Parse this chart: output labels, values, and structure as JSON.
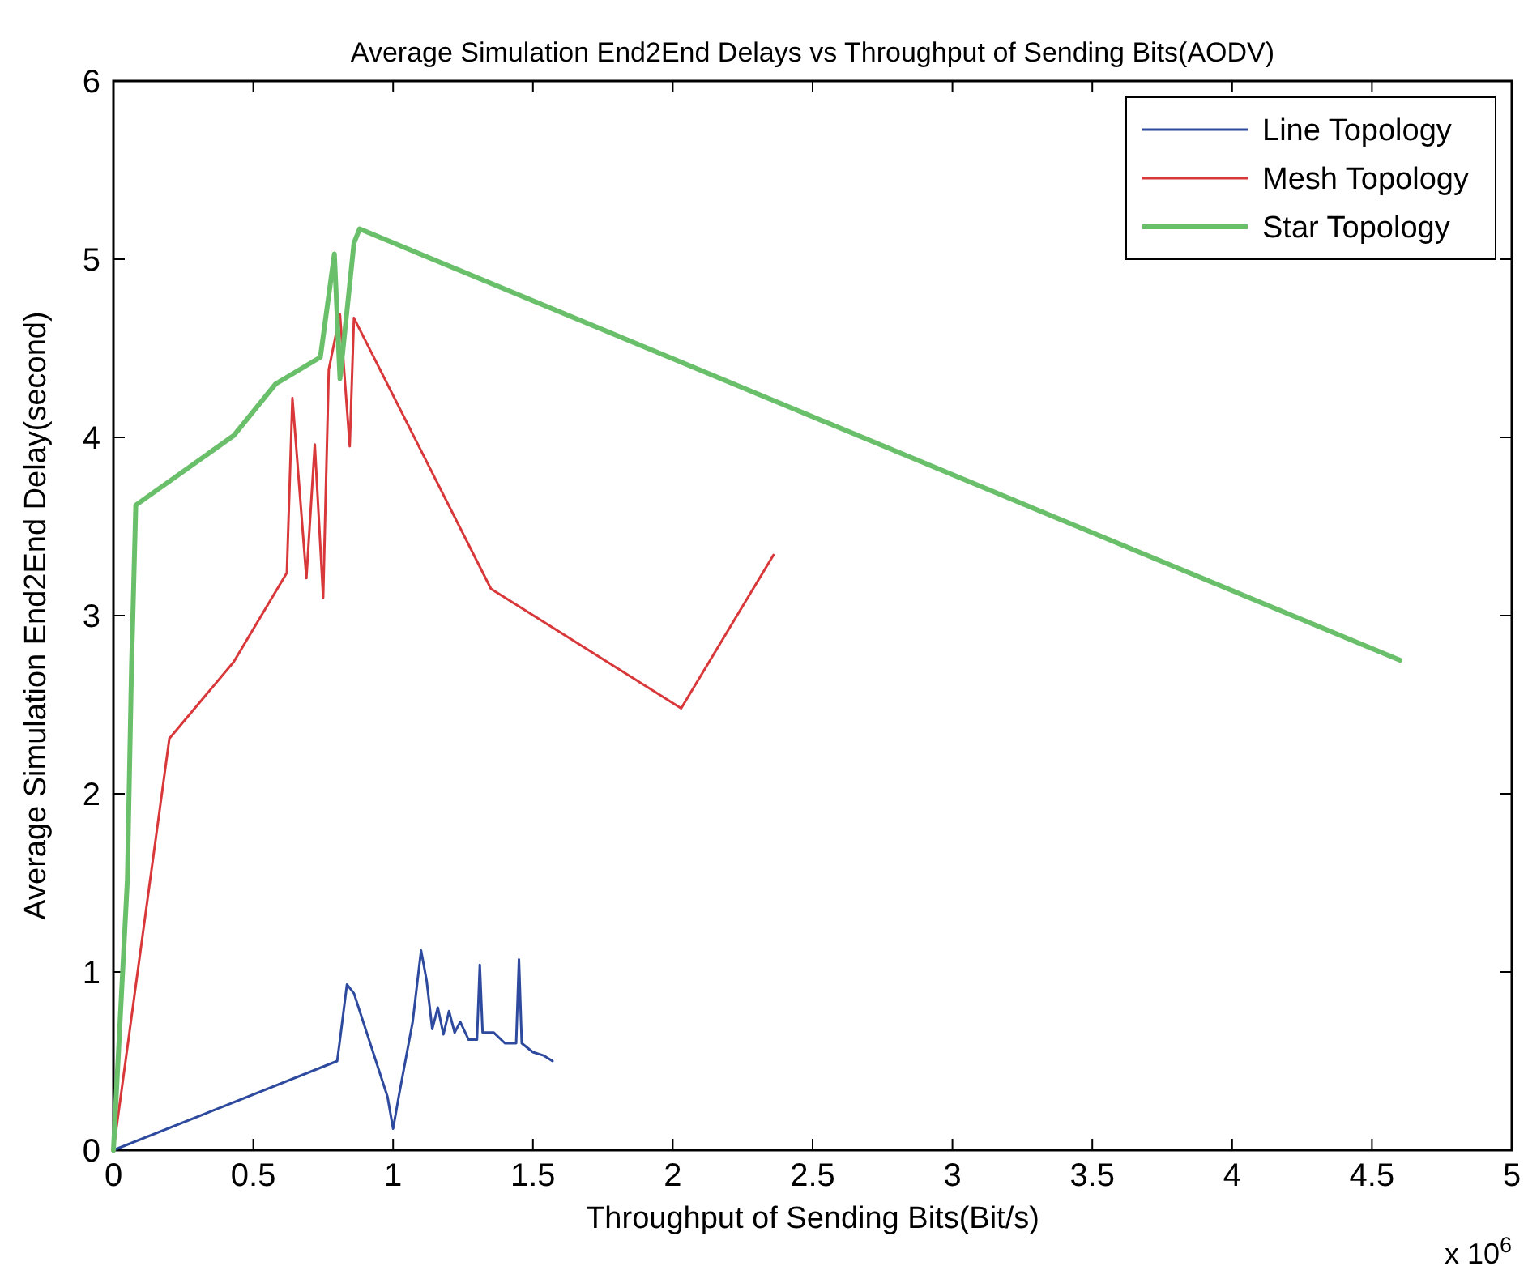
{
  "chart_data": {
    "type": "line",
    "title": "Average Simulation End2End Delays vs Throughput of Sending Bits(AODV)",
    "xlabel": "Throughput of Sending Bits(Bit/s)",
    "ylabel": "Average Simulation End2End Delay(second)",
    "annotations": [
      "x 10$^{6}$"
    ],
    "xlim": [
      0,
      5
    ],
    "xticks": [
      0,
      0.5,
      1,
      1.5,
      2,
      2.5,
      3,
      3.5,
      4,
      4.5,
      5
    ],
    "ylim": [
      0,
      6
    ],
    "yticks": [
      0,
      1,
      2,
      3,
      4,
      5,
      6
    ],
    "grid": false,
    "legend": "top right",
    "line_style": "solid",
    "marker": "none",
    "series": [
      {
        "name": "Line Topology",
        "color": "#2e4a9e",
        "x": [
          0,
          0.8,
          0.81,
          0.835,
          0.86,
          0.98,
          1.0,
          1.02,
          1.07,
          1.1,
          1.12,
          1.14,
          1.16,
          1.18,
          1.2,
          1.22,
          1.24,
          1.27,
          1.3,
          1.31,
          1.32,
          1.36,
          1.4,
          1.44,
          1.45,
          1.46,
          1.5,
          1.54,
          1.57
        ],
        "values": [
          0,
          0.5,
          0.62,
          0.93,
          0.88,
          0.3,
          0.12,
          0.3,
          0.72,
          1.12,
          0.95,
          0.68,
          0.8,
          0.65,
          0.78,
          0.66,
          0.72,
          0.62,
          0.62,
          1.04,
          0.66,
          0.66,
          0.6,
          0.6,
          1.07,
          0.6,
          0.55,
          0.53,
          0.5
        ]
      },
      {
        "name": "Mesh Topology",
        "color": "#d9383a",
        "x": [
          0,
          0.2,
          0.43,
          0.62,
          0.64,
          0.69,
          0.72,
          0.75,
          0.77,
          0.81,
          0.845,
          0.86,
          1.35,
          2.03,
          2.36
        ],
        "values": [
          0,
          2.31,
          2.74,
          3.24,
          4.22,
          3.21,
          3.96,
          3.1,
          4.38,
          4.69,
          3.95,
          4.67,
          3.15,
          2.48,
          3.34
        ]
      },
      {
        "name": "Star Topology",
        "color": "#6abf6a",
        "x": [
          0,
          0.05,
          0.065,
          0.08,
          0.43,
          0.58,
          0.74,
          0.79,
          0.81,
          0.86,
          0.88,
          4.6
        ],
        "values": [
          0,
          1.52,
          2.73,
          3.62,
          4.01,
          4.3,
          4.45,
          5.03,
          4.33,
          5.09,
          5.17,
          2.75
        ]
      }
    ]
  }
}
